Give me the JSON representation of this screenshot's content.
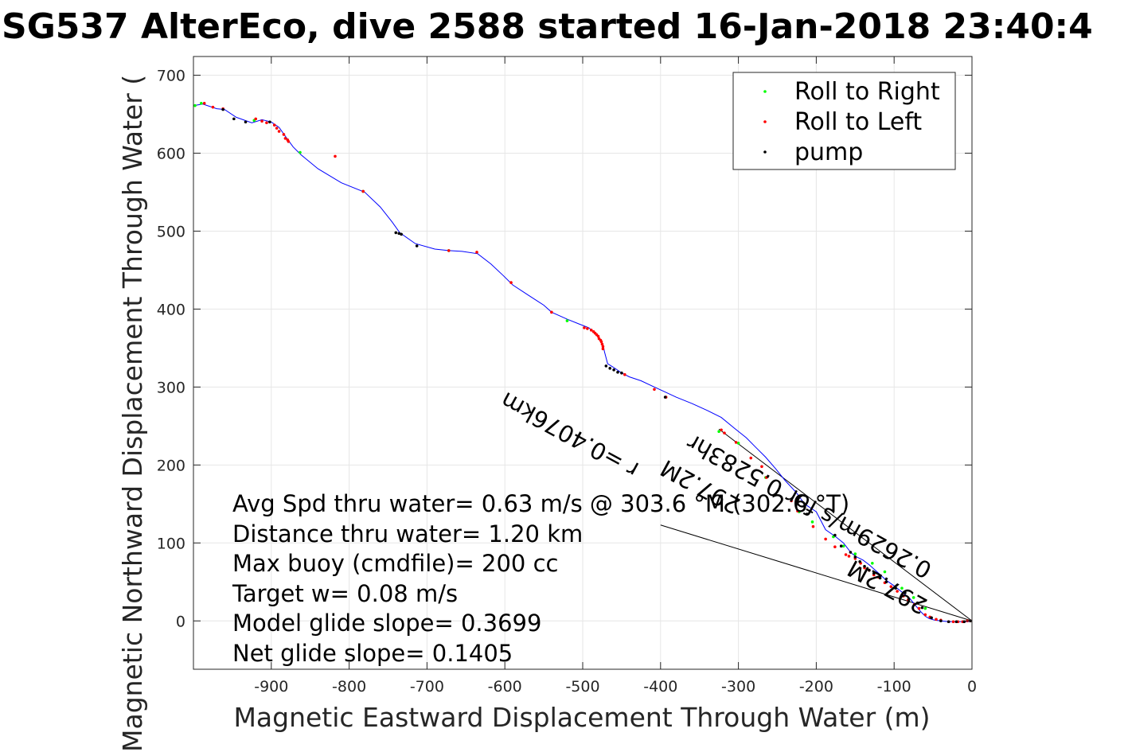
{
  "chart_data": {
    "type": "scatter",
    "title": "SG537 AlterEco, dive 2588 started 16-Jan-2018 23:40:4",
    "xlabel": "Magnetic Eastward Displacement Through Water (m)",
    "ylabel": "Magnetic Northward Displacement Through Water (",
    "xlim": [
      -1000,
      0
    ],
    "ylim": [
      -62,
      724
    ],
    "xticks": [
      -900,
      -800,
      -700,
      -600,
      -500,
      -400,
      -300,
      -200,
      -100,
      0
    ],
    "yticks": [
      0,
      100,
      200,
      300,
      400,
      500,
      600,
      700
    ],
    "grid": true,
    "legend_position": "top-right",
    "legend": [
      "Roll to Right",
      "Roll to Left",
      "pump"
    ],
    "colors": {
      "track": "#0000ff",
      "roll_right": "#00ff00",
      "roll_left": "#ff0000",
      "pump": "#000000",
      "vectors": "#000000",
      "grid": "#e6e6e6"
    },
    "track": {
      "x": [
        -1000,
        -988,
        -970,
        -960,
        -945,
        -925,
        -912,
        -900,
        -890,
        -880,
        -872,
        -862,
        -840,
        -810,
        -780,
        -760,
        -745,
        -735,
        -715,
        -690,
        -672,
        -655,
        -635,
        -618,
        -602,
        -590,
        -570,
        -550,
        -540,
        -520,
        -505,
        -492,
        -480,
        -474,
        -472,
        -468,
        -460,
        -450,
        -440,
        -425,
        -410,
        -395,
        -380,
        -360,
        -340,
        -322,
        -305,
        -290,
        -278,
        -265,
        -252,
        -240,
        -226,
        -215,
        -200,
        -188,
        -175,
        -165,
        -155,
        -148,
        -140,
        -132,
        -122,
        -110,
        -100,
        -90,
        -80,
        -72,
        -66,
        -60,
        -55,
        -48,
        -40,
        -30,
        -20,
        -10,
        -5,
        0
      ],
      "y": [
        661,
        663,
        657,
        656,
        646,
        639,
        643,
        640,
        633,
        619,
        608,
        598,
        580,
        562,
        550,
        531,
        512,
        498,
        484,
        477,
        475,
        474,
        471,
        458,
        443,
        431,
        418,
        405,
        396,
        387,
        381,
        376,
        365,
        355,
        345,
        330,
        325,
        318,
        313,
        308,
        301,
        294,
        287,
        279,
        270,
        261,
        247,
        235,
        223,
        210,
        195,
        180,
        165,
        150,
        140,
        117,
        108,
        100,
        87,
        82,
        78,
        72,
        63,
        52,
        45,
        37,
        29,
        19,
        12,
        6,
        3,
        1,
        0,
        -1,
        -1,
        -1,
        -1,
        0
      ]
    },
    "roll_right": {
      "x": [
        -998,
        -990,
        -922,
        -863,
        -782,
        -672,
        -520,
        -325,
        -300,
        -265,
        -222,
        -205,
        -178,
        -165,
        -150,
        -128,
        -112,
        -90,
        -75,
        -60
      ],
      "y": [
        661,
        664,
        642,
        601,
        551,
        475,
        385,
        243,
        228,
        184,
        140,
        127,
        108,
        96,
        86,
        74,
        63,
        42,
        30,
        16
      ]
    },
    "roll_left": {
      "x": [
        -986,
        -975,
        -962,
        -920,
        -912,
        -906,
        -896,
        -893,
        -890,
        -884,
        -882,
        -879,
        -878,
        -818,
        -782,
        -672,
        -636,
        -592,
        -540,
        -498,
        -494,
        -489,
        -486,
        -484,
        -482,
        -480,
        -479,
        -477,
        -476,
        -475,
        -474,
        -474,
        -446,
        -408,
        -393,
        -322,
        -318,
        -303,
        -284,
        -270,
        -264,
        -232,
        -224,
        -204,
        -188,
        -176,
        -162,
        -158,
        -150,
        -143,
        -138,
        -132,
        -126,
        -120,
        -112,
        -104,
        -96,
        -88,
        -82,
        -74,
        -68,
        -60,
        -54,
        -46,
        -40,
        -30,
        -24,
        -18,
        -12,
        -6,
        -2
      ],
      "y": [
        664,
        659,
        657,
        644,
        641,
        639,
        636,
        632,
        628,
        624,
        619,
        617,
        615,
        596,
        551,
        475,
        473,
        434,
        396,
        376,
        375,
        373,
        371,
        369,
        367,
        365,
        362,
        360,
        358,
        355,
        352,
        349,
        316,
        297,
        287,
        245,
        241,
        229,
        209,
        198,
        184,
        154,
        141,
        121,
        105,
        95,
        85,
        83,
        80,
        74,
        68,
        65,
        59,
        56,
        49,
        44,
        38,
        32,
        27,
        21,
        16,
        8,
        5,
        2,
        1,
        -1,
        -1,
        -1,
        -1,
        0,
        0
      ]
    },
    "pump": {
      "x": [
        -962,
        -948,
        -933,
        -902,
        -740,
        -736,
        -733,
        -713,
        -470,
        -465,
        -460,
        -455,
        -450,
        -394,
        -212,
        -176,
        -168,
        -156,
        -150,
        -144,
        -138,
        -132,
        -126,
        -118,
        -110,
        -98,
        -86,
        -70,
        -64,
        -52,
        -40,
        -30,
        -20,
        -10,
        -2
      ],
      "y": [
        656,
        644,
        640,
        640,
        498,
        497,
        496,
        481,
        327,
        324,
        322,
        319,
        318,
        287,
        137,
        110,
        96,
        88,
        82,
        76,
        70,
        65,
        61,
        55,
        50,
        42,
        36,
        23,
        17,
        4,
        0,
        -1,
        -1,
        -1,
        0
      ]
    },
    "vectors": [
      {
        "label": "0.4076km",
        "x": [
          -400,
          0
        ],
        "y": [
          123,
          0
        ]
      },
      {
        "label": "297.2M",
        "x": [
          -325,
          0
        ],
        "y": [
          246,
          0
        ]
      }
    ],
    "rotated_labels": [
      "r =0.4076km",
      "297.2M",
      "0.2629m/s for 0.5283hr",
      "297.2M"
    ],
    "annotations": [
      "Avg Spd thru water=  0.63 m/s @ 303.6 °M (302.6 °T)",
      "Distance thru water=  1.20 km",
      "Max buoy (cmdfile)= 200 cc",
      "Target w= 0.08 m/s",
      "Model glide slope= 0.3699",
      "Net glide slope= 0.1405"
    ]
  }
}
